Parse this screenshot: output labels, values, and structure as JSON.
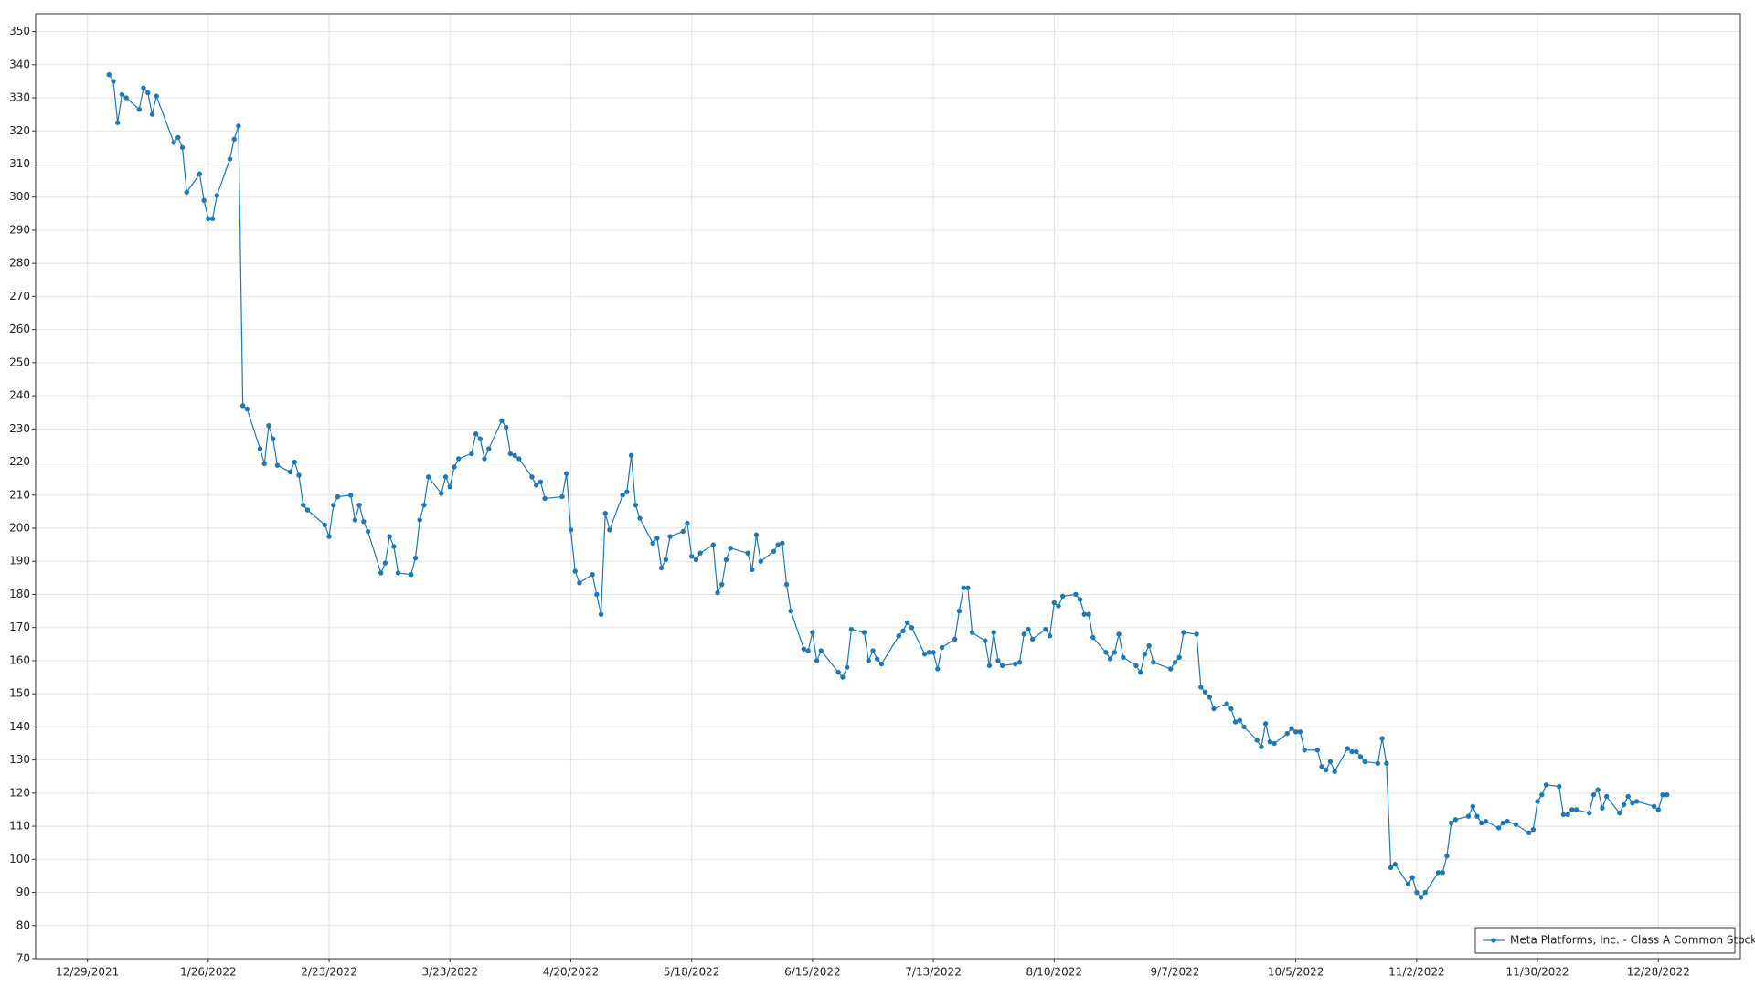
{
  "chart_data": {
    "type": "line",
    "series": [
      {
        "name": "Meta Platforms, Inc. - Class A Common Stock",
        "color": "#1f77b4",
        "values": [
          337,
          335,
          322.5,
          331,
          330,
          326.5,
          333,
          331.5,
          325,
          330.5,
          316.5,
          318,
          315,
          301.5,
          307,
          299,
          293.5,
          293.5,
          300.5,
          311.5,
          317.5,
          321.5,
          237,
          236,
          224,
          219.5,
          231,
          227,
          219,
          217,
          220,
          216,
          207,
          205.5,
          201,
          197.5,
          207,
          209.5,
          210,
          202.5,
          207,
          202,
          199,
          186.5,
          189.5,
          197.5,
          194.5,
          186.5,
          186,
          191,
          202.5,
          207,
          215.5,
          210.5,
          215.5,
          212.5,
          218.5,
          221,
          222.5,
          228.5,
          227,
          221,
          224,
          232.5,
          230.5,
          222.5,
          222,
          221,
          215.5,
          213,
          214,
          209,
          209.5,
          216.5,
          199.5,
          187,
          183.5,
          186,
          180,
          174,
          204.5,
          199.5,
          210,
          211,
          222,
          207,
          203,
          195.5,
          197,
          188,
          190.5,
          197.5,
          199,
          201.5,
          191.5,
          190.5,
          192.5,
          195,
          180.5,
          183,
          190.5,
          194,
          192.5,
          187.5,
          198,
          190,
          193,
          195,
          195.5,
          183,
          175,
          163.5,
          163,
          168.5,
          160,
          163,
          156.5,
          155,
          158,
          169.5,
          168.5,
          160,
          163,
          160.5,
          159,
          167.5,
          169,
          171.5,
          170,
          162,
          162.5,
          162.5,
          157.5,
          164,
          166.5,
          175,
          182,
          182,
          168.5,
          166,
          158.5,
          168.5,
          160,
          158.5,
          159,
          159.5,
          168,
          169.5,
          166.5,
          169.5,
          167.5,
          177.5,
          176.5,
          179.5,
          180,
          178.5,
          174,
          174,
          167,
          162.5,
          160.5,
          162.5,
          168,
          161,
          158.5,
          156.5,
          162,
          164.5,
          159.5,
          157.5,
          159.5,
          161,
          168.5,
          168,
          152,
          150.5,
          149,
          145.5,
          147,
          145.5,
          141.5,
          142,
          140,
          136,
          134,
          141,
          135.5,
          135,
          138,
          139.5,
          138.5,
          138.5,
          133,
          133,
          128,
          127,
          129.5,
          126.5,
          133.5,
          132.5,
          132.5,
          131,
          129.5,
          129,
          136.5,
          129,
          97.5,
          98.5,
          92.5,
          94.5,
          90,
          88.5,
          90,
          96,
          96,
          101,
          111,
          112,
          113,
          116,
          113,
          111,
          111.5,
          109.5,
          111,
          111.5,
          110.5,
          108,
          109,
          117.5,
          119.5,
          122.5,
          122,
          113.5,
          113.5,
          115,
          115,
          114,
          119.5,
          121,
          115.5,
          119,
          114,
          116.5,
          119,
          117,
          117.5,
          116,
          115,
          119.5,
          119.5
        ]
      }
    ],
    "x": [
      "2022-01-03",
      "2022-01-04",
      "2022-01-05",
      "2022-01-06",
      "2022-01-07",
      "2022-01-10",
      "2022-01-11",
      "2022-01-12",
      "2022-01-13",
      "2022-01-14",
      "2022-01-18",
      "2022-01-19",
      "2022-01-20",
      "2022-01-21",
      "2022-01-24",
      "2022-01-25",
      "2022-01-26",
      "2022-01-27",
      "2022-01-28",
      "2022-01-31",
      "2022-02-01",
      "2022-02-02",
      "2022-02-03",
      "2022-02-04",
      "2022-02-07",
      "2022-02-08",
      "2022-02-09",
      "2022-02-10",
      "2022-02-11",
      "2022-02-14",
      "2022-02-15",
      "2022-02-16",
      "2022-02-17",
      "2022-02-18",
      "2022-02-22",
      "2022-02-23",
      "2022-02-24",
      "2022-02-25",
      "2022-02-28",
      "2022-03-01",
      "2022-03-02",
      "2022-03-03",
      "2022-03-04",
      "2022-03-07",
      "2022-03-08",
      "2022-03-09",
      "2022-03-10",
      "2022-03-11",
      "2022-03-14",
      "2022-03-15",
      "2022-03-16",
      "2022-03-17",
      "2022-03-18",
      "2022-03-21",
      "2022-03-22",
      "2022-03-23",
      "2022-03-24",
      "2022-03-25",
      "2022-03-28",
      "2022-03-29",
      "2022-03-30",
      "2022-03-31",
      "2022-04-01",
      "2022-04-04",
      "2022-04-05",
      "2022-04-06",
      "2022-04-07",
      "2022-04-08",
      "2022-04-11",
      "2022-04-12",
      "2022-04-13",
      "2022-04-14",
      "2022-04-18",
      "2022-04-19",
      "2022-04-20",
      "2022-04-21",
      "2022-04-22",
      "2022-04-25",
      "2022-04-26",
      "2022-04-27",
      "2022-04-28",
      "2022-04-29",
      "2022-05-02",
      "2022-05-03",
      "2022-05-04",
      "2022-05-05",
      "2022-05-06",
      "2022-05-09",
      "2022-05-10",
      "2022-05-11",
      "2022-05-12",
      "2022-05-13",
      "2022-05-16",
      "2022-05-17",
      "2022-05-18",
      "2022-05-19",
      "2022-05-20",
      "2022-05-23",
      "2022-05-24",
      "2022-05-25",
      "2022-05-26",
      "2022-05-27",
      "2022-05-31",
      "2022-06-01",
      "2022-06-02",
      "2022-06-03",
      "2022-06-06",
      "2022-06-07",
      "2022-06-08",
      "2022-06-09",
      "2022-06-10",
      "2022-06-13",
      "2022-06-14",
      "2022-06-15",
      "2022-06-16",
      "2022-06-17",
      "2022-06-21",
      "2022-06-22",
      "2022-06-23",
      "2022-06-24",
      "2022-06-27",
      "2022-06-28",
      "2022-06-29",
      "2022-06-30",
      "2022-07-01",
      "2022-07-05",
      "2022-07-06",
      "2022-07-07",
      "2022-07-08",
      "2022-07-11",
      "2022-07-12",
      "2022-07-13",
      "2022-07-14",
      "2022-07-15",
      "2022-07-18",
      "2022-07-19",
      "2022-07-20",
      "2022-07-21",
      "2022-07-22",
      "2022-07-25",
      "2022-07-26",
      "2022-07-27",
      "2022-07-28",
      "2022-07-29",
      "2022-08-01",
      "2022-08-02",
      "2022-08-03",
      "2022-08-04",
      "2022-08-05",
      "2022-08-08",
      "2022-08-09",
      "2022-08-10",
      "2022-08-11",
      "2022-08-12",
      "2022-08-15",
      "2022-08-16",
      "2022-08-17",
      "2022-08-18",
      "2022-08-19",
      "2022-08-22",
      "2022-08-23",
      "2022-08-24",
      "2022-08-25",
      "2022-08-26",
      "2022-08-29",
      "2022-08-30",
      "2022-08-31",
      "2022-09-01",
      "2022-09-02",
      "2022-09-06",
      "2022-09-07",
      "2022-09-08",
      "2022-09-09",
      "2022-09-12",
      "2022-09-13",
      "2022-09-14",
      "2022-09-15",
      "2022-09-16",
      "2022-09-19",
      "2022-09-20",
      "2022-09-21",
      "2022-09-22",
      "2022-09-23",
      "2022-09-26",
      "2022-09-27",
      "2022-09-28",
      "2022-09-29",
      "2022-09-30",
      "2022-10-03",
      "2022-10-04",
      "2022-10-05",
      "2022-10-06",
      "2022-10-07",
      "2022-10-10",
      "2022-10-11",
      "2022-10-12",
      "2022-10-13",
      "2022-10-14",
      "2022-10-17",
      "2022-10-18",
      "2022-10-19",
      "2022-10-20",
      "2022-10-21",
      "2022-10-24",
      "2022-10-25",
      "2022-10-26",
      "2022-10-27",
      "2022-10-28",
      "2022-10-31",
      "2022-11-01",
      "2022-11-02",
      "2022-11-03",
      "2022-11-04",
      "2022-11-07",
      "2022-11-08",
      "2022-11-09",
      "2022-11-10",
      "2022-11-11",
      "2022-11-14",
      "2022-11-15",
      "2022-11-16",
      "2022-11-17",
      "2022-11-18",
      "2022-11-21",
      "2022-11-22",
      "2022-11-23",
      "2022-11-25",
      "2022-11-28",
      "2022-11-29",
      "2022-11-30",
      "2022-12-01",
      "2022-12-02",
      "2022-12-05",
      "2022-12-06",
      "2022-12-07",
      "2022-12-08",
      "2022-12-09",
      "2022-12-12",
      "2022-12-13",
      "2022-12-14",
      "2022-12-15",
      "2022-12-16",
      "2022-12-19",
      "2022-12-20",
      "2022-12-21",
      "2022-12-22",
      "2022-12-23",
      "2022-12-27",
      "2022-12-28",
      "2022-12-29",
      "2022-12-30"
    ],
    "xlim": [
      "2021-12-17",
      "2023-01-16"
    ],
    "xticks": [
      {
        "value": "2021-12-29",
        "label": "12/29/2021"
      },
      {
        "value": "2022-01-26",
        "label": "1/26/2022"
      },
      {
        "value": "2022-02-23",
        "label": "2/23/2022"
      },
      {
        "value": "2022-03-23",
        "label": "3/23/2022"
      },
      {
        "value": "2022-04-20",
        "label": "4/20/2022"
      },
      {
        "value": "2022-05-18",
        "label": "5/18/2022"
      },
      {
        "value": "2022-06-15",
        "label": "6/15/2022"
      },
      {
        "value": "2022-07-13",
        "label": "7/13/2022"
      },
      {
        "value": "2022-08-10",
        "label": "8/10/2022"
      },
      {
        "value": "2022-09-07",
        "label": "9/7/2022"
      },
      {
        "value": "2022-10-05",
        "label": "10/5/2022"
      },
      {
        "value": "2022-11-02",
        "label": "11/2/2022"
      },
      {
        "value": "2022-11-30",
        "label": "11/30/2022"
      },
      {
        "value": "2022-12-28",
        "label": "12/28/2022"
      }
    ],
    "ylim": [
      70,
      355.4
    ],
    "yticks": [
      70,
      80,
      90,
      100,
      110,
      120,
      130,
      140,
      150,
      160,
      170,
      180,
      190,
      200,
      210,
      220,
      230,
      240,
      250,
      260,
      270,
      280,
      290,
      300,
      310,
      320,
      330,
      340,
      350
    ],
    "grid": true,
    "legend": "lower right"
  }
}
